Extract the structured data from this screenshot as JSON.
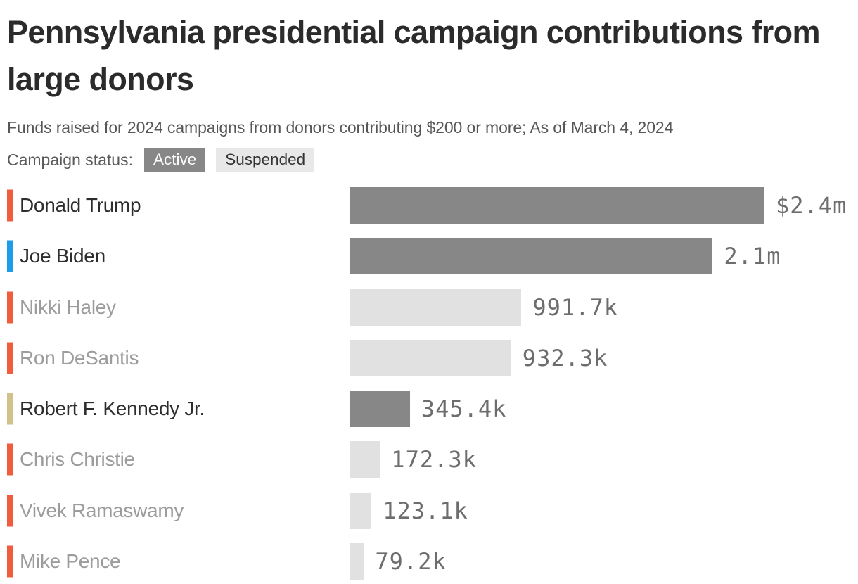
{
  "title": "Pennsylvania presidential campaign contributions from large donors",
  "subtitle": "Funds raised for 2024 campaigns from donors contributing $200 or more; As of March 4, 2024",
  "legend": {
    "label": "Campaign status:",
    "items": [
      {
        "label": "Active",
        "status": "active"
      },
      {
        "label": "Suspended",
        "status": "suspended"
      }
    ]
  },
  "colors": {
    "active_bar": "#878787",
    "suspended_bar": "#e1e1e1",
    "suspended_badge": "#e8e8e8",
    "active_label": "#2d2d2d",
    "suspended_label": "#9c9c9c",
    "value_text": "#6d6d6d",
    "republican_accent": "#f15b3e",
    "democrat_accent": "#1d9ce9",
    "independent_accent": "#d1c28c"
  },
  "chart_data": {
    "type": "bar",
    "orientation": "horizontal",
    "title": "Pennsylvania presidential campaign contributions from large donors",
    "subtitle": "Funds raised for 2024 campaigns from donors contributing $200 or more; As of March 4, 2024",
    "unit": "USD",
    "xlim": [
      0,
      2400000
    ],
    "grid": false,
    "legend_position": "top",
    "bars": [
      {
        "name": "Donald Trump",
        "value": 2400000,
        "value_label": "$2.4m",
        "status": "active",
        "accent": "#f15b3e"
      },
      {
        "name": "Joe Biden",
        "value": 2100000,
        "value_label": "2.1m",
        "status": "active",
        "accent": "#1d9ce9"
      },
      {
        "name": "Nikki Haley",
        "value": 991700,
        "value_label": "991.7k",
        "status": "suspended",
        "accent": "#f15b3e"
      },
      {
        "name": "Ron DeSantis",
        "value": 932300,
        "value_label": "932.3k",
        "status": "suspended",
        "accent": "#f15b3e"
      },
      {
        "name": "Robert F. Kennedy Jr.",
        "value": 345400,
        "value_label": "345.4k",
        "status": "active",
        "accent": "#d1c28c"
      },
      {
        "name": "Chris Christie",
        "value": 172300,
        "value_label": "172.3k",
        "status": "suspended",
        "accent": "#f15b3e"
      },
      {
        "name": "Vivek Ramaswamy",
        "value": 123100,
        "value_label": "123.1k",
        "status": "suspended",
        "accent": "#f15b3e"
      },
      {
        "name": "Mike Pence",
        "value": 79200,
        "value_label": "79.2k",
        "status": "suspended",
        "accent": "#f15b3e"
      }
    ]
  }
}
